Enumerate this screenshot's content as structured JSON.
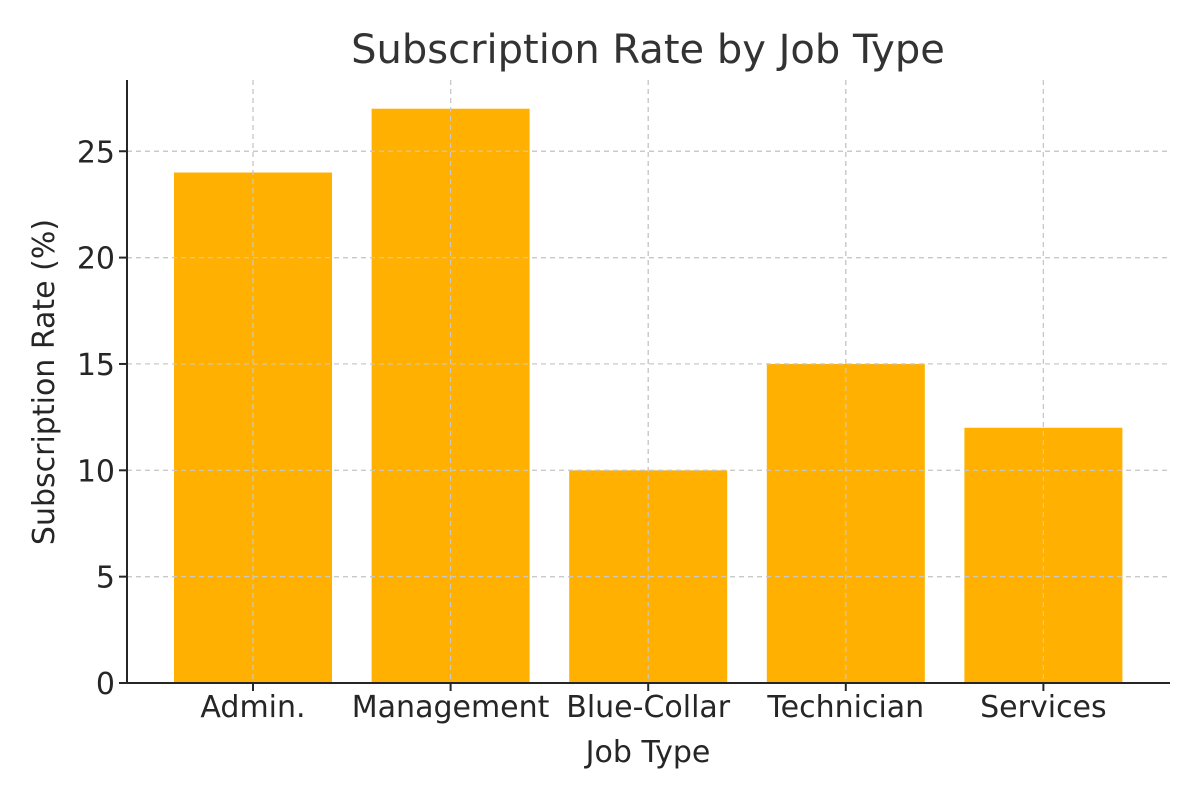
{
  "chart_data": {
    "type": "bar",
    "title": "Subscription Rate by Job Type",
    "xlabel": "Job Type",
    "ylabel": "Subscription Rate (%)",
    "categories": [
      "Admin.",
      "Management",
      "Blue-Collar",
      "Technician",
      "Services"
    ],
    "values": [
      24,
      27,
      10,
      15,
      12
    ],
    "ylim": [
      0,
      28.35
    ],
    "yticks": [
      0,
      5,
      10,
      15,
      20,
      25
    ],
    "grid": true,
    "bar_color": "#FFB000"
  }
}
